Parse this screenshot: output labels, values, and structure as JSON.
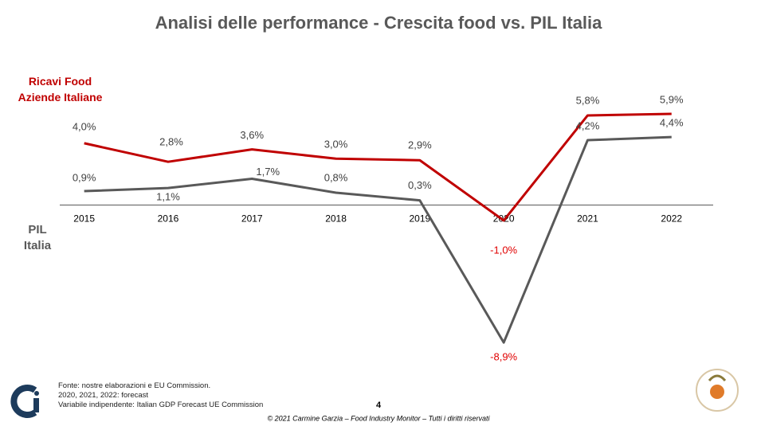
{
  "chart_data": {
    "type": "line",
    "title": "Analisi delle performance - Crescita food vs. PIL Italia",
    "categories": [
      "2015",
      "2016",
      "2017",
      "2018",
      "2019",
      "2020",
      "2021",
      "2022"
    ],
    "series": [
      {
        "name": "Ricavi Food Aziende Italiane",
        "color": "#c00000",
        "values": [
          4.0,
          2.8,
          3.6,
          3.0,
          2.9,
          -1.0,
          5.8,
          5.9
        ],
        "value_labels": [
          "4,0%",
          "2,8%",
          "3,6%",
          "3,0%",
          "2,9%",
          "-1,0%",
          "5,8%",
          "5,9%"
        ]
      },
      {
        "name": "PIL Italia",
        "color": "#595959",
        "values": [
          0.9,
          1.1,
          1.7,
          0.8,
          0.3,
          -8.9,
          4.2,
          4.4
        ],
        "value_labels": [
          "0,9%",
          "1,1%",
          "1,7%",
          "0,8%",
          "0,3%",
          "-8,9%",
          "4,2%",
          "4,4%"
        ]
      }
    ],
    "ylim": [
      -10,
      7
    ]
  },
  "footer": {
    "notes": [
      "Fonte: nostre elaborazioni e EU Commission.",
      "2020, 2021, 2022: forecast",
      "Variabile indipendente: Italian GDP Forecast UE Commission"
    ],
    "page": "4",
    "copyright": "© 2021 Carmine Garzia – Food Industry Monitor – Tutti i diritti riservati"
  }
}
